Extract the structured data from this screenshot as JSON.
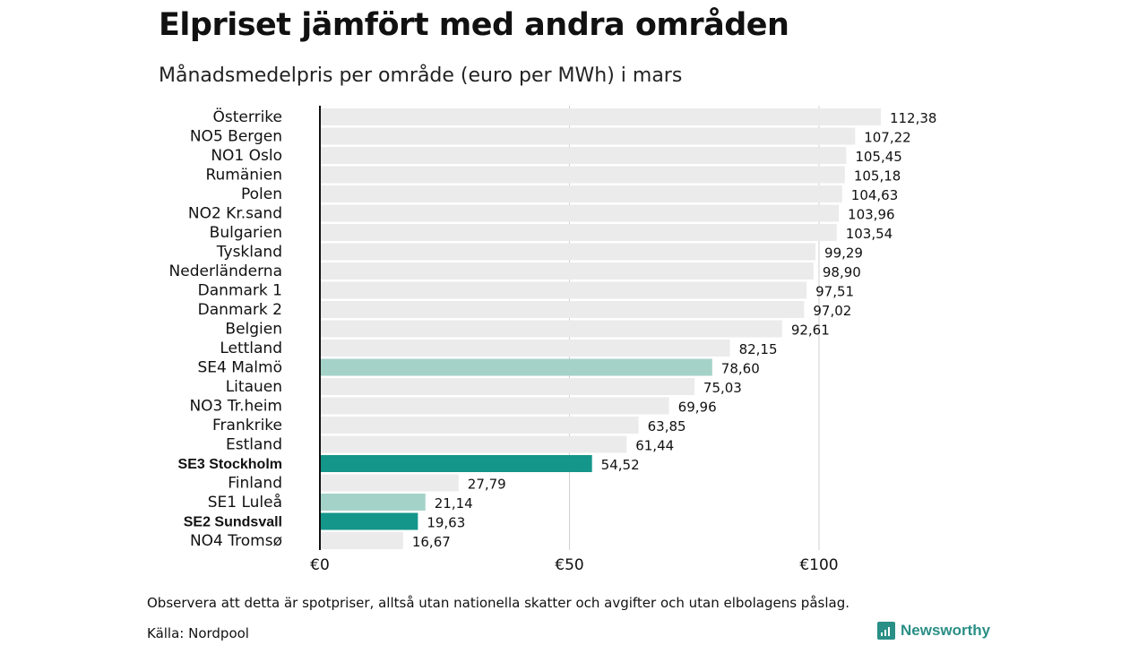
{
  "title": "Elpriset jämfört med andra områden",
  "subtitle": "Månadsmedelpris per område (euro per MWh) i mars",
  "note": "Observera att detta är spotpriser, alltså utan nationella skatter och avgifter och utan elbolagens påslag.",
  "source": "Källa: Nordpool",
  "logo": "Newsworthy",
  "colors": {
    "default": "#ebebeb",
    "highlight_light": "#a5d2c8",
    "highlight_dark": "#14968a",
    "axis": "#111111",
    "grid": "#d0d0d0"
  },
  "chart_data": {
    "type": "bar",
    "orientation": "horizontal",
    "xlabel": "",
    "ylabel": "",
    "xlim": [
      0,
      115
    ],
    "xticks": [
      0,
      50,
      100
    ],
    "xtick_labels": [
      "€0",
      "€50",
      "€100"
    ],
    "grid": true,
    "categories": [
      "Österrike",
      "NO5 Bergen",
      "NO1 Oslo",
      "Rumänien",
      "Polen",
      "NO2 Kr.sand",
      "Bulgarien",
      "Tyskland",
      "Nederländerna",
      "Danmark  1",
      "Danmark  2",
      "Belgien",
      "Lettland",
      "SE4  Malmö",
      "Litauen",
      "NO3 Tr.heim",
      "Frankrike",
      "Estland",
      "SE3 Stockholm",
      "Finland",
      "SE1  Luleå",
      "SE2 Sundsvall",
      "NO4 Tromsø"
    ],
    "values": [
      112.38,
      107.22,
      105.45,
      105.18,
      104.63,
      103.96,
      103.54,
      99.29,
      98.9,
      97.51,
      97.02,
      92.61,
      82.15,
      78.6,
      75.03,
      69.96,
      63.85,
      61.44,
      54.52,
      27.79,
      21.14,
      19.63,
      16.67
    ],
    "value_labels": [
      "112,38",
      "107,22",
      "105,45",
      "105,18",
      "104,63",
      "103,96",
      "103,54",
      "99,29",
      "98,90",
      "97,51",
      "97,02",
      "92,61",
      "82,15",
      "78,60",
      "75,03",
      "69,96",
      "63,85",
      "61,44",
      "54,52",
      "27,79",
      "21,14",
      "19,63",
      "16,67"
    ],
    "highlight": [
      "none",
      "none",
      "none",
      "none",
      "none",
      "none",
      "none",
      "none",
      "none",
      "none",
      "none",
      "none",
      "none",
      "light",
      "none",
      "none",
      "none",
      "none",
      "dark",
      "none",
      "light",
      "dark",
      "none"
    ],
    "bold": [
      false,
      false,
      false,
      false,
      false,
      false,
      false,
      false,
      false,
      false,
      false,
      false,
      false,
      false,
      false,
      false,
      false,
      false,
      true,
      false,
      false,
      true,
      false
    ]
  }
}
